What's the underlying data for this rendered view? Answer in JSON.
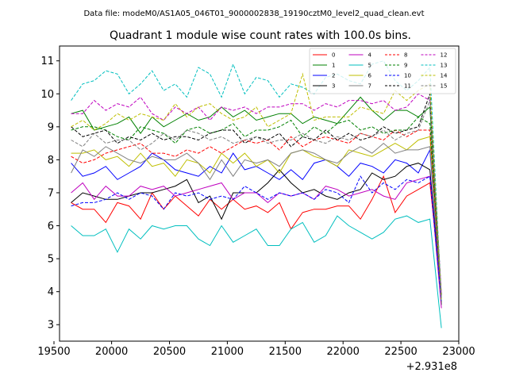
{
  "header": {
    "data_file": "Data file: modeM0/AS1A05_046T01_9000002838_19190cztM0_level2_quad_clean.evt"
  },
  "chart_data": {
    "type": "line",
    "title": "Quadrant 1 module wise count rates with 100.0s bins.",
    "xlabel": "",
    "ylabel": "",
    "x_offset_label": "+2.931e8",
    "xlim": [
      19550,
      23000
    ],
    "ylim": [
      2.5,
      11.45
    ],
    "xticks": [
      19500,
      20000,
      20500,
      21000,
      21500,
      22000,
      22500,
      23000
    ],
    "yticks": [
      3,
      4,
      5,
      6,
      7,
      8,
      9,
      10,
      11
    ],
    "grid": false,
    "legend_placement": "top-right",
    "x": [
      19650,
      19750,
      19850,
      19950,
      20050,
      20150,
      20250,
      20350,
      20450,
      20550,
      20650,
      20750,
      20850,
      20950,
      21050,
      21150,
      21250,
      21350,
      21450,
      21550,
      21650,
      21750,
      21850,
      21950,
      22050,
      22150,
      22250,
      22350,
      22450,
      22550,
      22650,
      22750,
      22850
    ],
    "series": [
      {
        "name": "0",
        "color": "#ff0000",
        "dash": "solid",
        "values": [
          6.7,
          6.5,
          6.5,
          6.1,
          6.7,
          6.6,
          6.2,
          7.0,
          6.5,
          6.9,
          6.6,
          6.3,
          6.8,
          6.5,
          6.8,
          6.5,
          6.6,
          6.4,
          6.7,
          5.9,
          6.4,
          6.5,
          6.5,
          6.6,
          6.6,
          6.2,
          6.8,
          7.5,
          6.4,
          6.9,
          7.1,
          7.3,
          3.9
        ]
      },
      {
        "name": "1",
        "color": "#008000",
        "dash": "solid",
        "values": [
          9.4,
          9.5,
          8.9,
          9.0,
          9.1,
          9.3,
          8.8,
          9.3,
          9.0,
          9.2,
          9.4,
          9.2,
          9.3,
          9.6,
          9.3,
          9.5,
          9.2,
          9.3,
          9.4,
          9.4,
          9.1,
          9.3,
          9.2,
          9.1,
          9.5,
          9.9,
          9.5,
          9.2,
          9.5,
          9.5,
          9.3,
          9.6,
          3.6
        ]
      },
      {
        "name": "2",
        "color": "#0000ff",
        "dash": "solid",
        "values": [
          7.9,
          7.5,
          7.6,
          7.8,
          7.4,
          7.6,
          7.8,
          8.2,
          8.0,
          7.7,
          7.6,
          7.5,
          7.8,
          7.6,
          8.2,
          7.7,
          7.8,
          7.6,
          7.4,
          7.7,
          7.4,
          7.9,
          8.0,
          7.8,
          7.5,
          7.9,
          7.8,
          7.6,
          8.0,
          7.9,
          7.6,
          8.3,
          3.7
        ]
      },
      {
        "name": "3",
        "color": "#000000",
        "dash": "solid",
        "values": [
          6.7,
          7.0,
          6.9,
          6.8,
          6.8,
          6.9,
          7.0,
          7.0,
          7.1,
          7.2,
          7.4,
          6.7,
          6.9,
          6.2,
          7.0,
          7.0,
          7.0,
          7.3,
          7.7,
          7.3,
          7.0,
          7.1,
          6.9,
          6.8,
          7.0,
          7.1,
          7.6,
          7.4,
          7.5,
          7.8,
          7.9,
          7.7,
          3.7
        ]
      },
      {
        "name": "4",
        "color": "#bf00bf",
        "dash": "solid",
        "values": [
          7.0,
          7.3,
          6.8,
          7.2,
          6.9,
          6.9,
          7.2,
          7.1,
          7.2,
          6.9,
          7.0,
          7.1,
          7.2,
          7.3,
          6.8,
          7.0,
          7.0,
          6.7,
          7.0,
          6.9,
          7.0,
          6.8,
          7.2,
          7.1,
          6.9,
          7.0,
          7.1,
          6.9,
          6.8,
          7.3,
          7.4,
          7.5,
          3.5
        ]
      },
      {
        "name": "5",
        "color": "#00bfbf",
        "dash": "solid",
        "values": [
          6.0,
          5.7,
          5.7,
          5.9,
          5.2,
          5.9,
          5.6,
          6.0,
          5.9,
          6.0,
          6.0,
          5.6,
          5.4,
          6.0,
          5.5,
          5.7,
          5.9,
          5.4,
          5.4,
          5.9,
          6.1,
          5.5,
          5.7,
          6.3,
          6.0,
          5.8,
          5.6,
          5.8,
          6.2,
          6.3,
          6.1,
          6.2,
          2.9
        ]
      },
      {
        "name": "6",
        "color": "#bfbf00",
        "dash": "solid",
        "values": [
          8.2,
          8.2,
          8.3,
          8.0,
          8.1,
          7.8,
          8.2,
          7.8,
          7.9,
          7.5,
          8.0,
          7.9,
          7.6,
          8.2,
          7.9,
          8.2,
          7.8,
          8.0,
          7.6,
          8.2,
          8.3,
          8.1,
          8.0,
          7.8,
          8.3,
          8.2,
          8.1,
          8.3,
          8.5,
          8.3,
          8.6,
          8.7,
          3.8
        ]
      },
      {
        "name": "7",
        "color": "#808080",
        "dash": "solid",
        "values": [
          7.6,
          8.3,
          8.1,
          8.4,
          8.2,
          8.0,
          7.9,
          8.1,
          8.0,
          8.0,
          8.2,
          7.9,
          7.4,
          8.0,
          7.5,
          8.0,
          7.9,
          8.0,
          7.8,
          8.2,
          8.3,
          8.2,
          8.0,
          7.9,
          8.2,
          8.4,
          8.2,
          8.5,
          8.2,
          8.3,
          8.3,
          8.4,
          3.7
        ]
      },
      {
        "name": "8",
        "color": "#ff0000",
        "dash": "dashed",
        "values": [
          8.1,
          7.9,
          8.0,
          8.2,
          8.3,
          8.4,
          8.5,
          8.2,
          8.2,
          8.1,
          8.3,
          8.2,
          8.4,
          8.2,
          8.4,
          8.6,
          8.5,
          8.6,
          8.3,
          8.7,
          8.4,
          8.6,
          8.7,
          8.6,
          8.5,
          8.8,
          8.7,
          8.6,
          8.9,
          8.7,
          8.9,
          8.9,
          3.8
        ]
      },
      {
        "name": "9",
        "color": "#008000",
        "dash": "dashed",
        "values": [
          8.9,
          9.0,
          9.0,
          8.9,
          8.7,
          8.6,
          9.0,
          8.9,
          8.8,
          8.5,
          8.9,
          9.0,
          8.8,
          8.9,
          9.1,
          8.7,
          8.9,
          8.9,
          9.0,
          9.2,
          8.7,
          9.0,
          8.8,
          9.1,
          9.2,
          8.9,
          9.0,
          8.8,
          8.9,
          8.9,
          9.3,
          9.1,
          3.8
        ]
      },
      {
        "name": "10",
        "color": "#0000ff",
        "dash": "dashed",
        "values": [
          6.6,
          6.7,
          6.7,
          6.8,
          7.0,
          6.8,
          7.0,
          6.9,
          6.5,
          7.0,
          6.9,
          7.0,
          6.8,
          6.9,
          6.8,
          7.2,
          7.0,
          6.8,
          7.0,
          6.9,
          7.0,
          6.8,
          7.1,
          7.0,
          6.7,
          7.5,
          7.0,
          7.3,
          7.1,
          7.4,
          7.3,
          7.5,
          3.7
        ]
      },
      {
        "name": "11",
        "color": "#000000",
        "dash": "dashed",
        "values": [
          9.0,
          8.7,
          8.8,
          8.9,
          8.5,
          8.7,
          8.6,
          8.8,
          8.6,
          8.7,
          8.7,
          8.6,
          8.8,
          8.9,
          8.9,
          8.5,
          8.7,
          8.6,
          8.8,
          8.4,
          8.7,
          8.6,
          8.9,
          8.6,
          8.8,
          8.6,
          8.7,
          9.0,
          8.8,
          8.9,
          9.0,
          10.0,
          3.9
        ]
      },
      {
        "name": "12",
        "color": "#bf00bf",
        "dash": "dashed",
        "values": [
          9.4,
          9.4,
          9.8,
          9.5,
          9.7,
          9.6,
          9.9,
          9.4,
          9.2,
          9.6,
          9.4,
          9.6,
          9.2,
          9.6,
          9.5,
          9.6,
          9.4,
          9.6,
          9.6,
          9.7,
          9.7,
          9.5,
          9.7,
          9.6,
          9.8,
          9.8,
          9.7,
          9.8,
          9.5,
          9.6,
          10.0,
          9.8,
          3.9
        ]
      },
      {
        "name": "13",
        "color": "#00bfbf",
        "dash": "dashed",
        "values": [
          9.8,
          10.3,
          10.4,
          10.7,
          10.6,
          10.0,
          10.3,
          10.7,
          10.1,
          10.3,
          9.9,
          10.8,
          10.6,
          9.9,
          10.9,
          10.0,
          10.5,
          10.4,
          9.9,
          10.3,
          10.2,
          10.0,
          10.5,
          10.6,
          10.4,
          10.3,
          10.9,
          11.0,
          10.4,
          10.1,
          10.4,
          10.8,
          3.7
        ]
      },
      {
        "name": "14",
        "color": "#bfbf00",
        "dash": "dashed",
        "values": [
          9.0,
          9.2,
          8.9,
          9.1,
          9.4,
          9.2,
          9.4,
          9.3,
          9.2,
          9.7,
          9.3,
          9.6,
          9.7,
          9.4,
          9.2,
          9.3,
          9.6,
          9.0,
          9.2,
          9.4,
          10.6,
          9.2,
          9.3,
          9.3,
          9.3,
          9.6,
          9.5,
          9.4,
          10.1,
          9.8,
          10.1,
          10.3,
          3.7
        ]
      },
      {
        "name": "15",
        "color": "#808080",
        "dash": "dashed",
        "values": [
          8.6,
          8.4,
          8.8,
          8.5,
          8.6,
          8.6,
          8.3,
          8.5,
          8.8,
          8.6,
          8.9,
          8.8,
          8.6,
          8.7,
          8.5,
          8.6,
          8.7,
          8.5,
          8.6,
          8.6,
          8.8,
          8.6,
          8.5,
          8.7,
          8.6,
          8.8,
          8.7,
          8.9,
          8.6,
          8.8,
          8.9,
          9.8,
          3.8
        ]
      }
    ]
  }
}
